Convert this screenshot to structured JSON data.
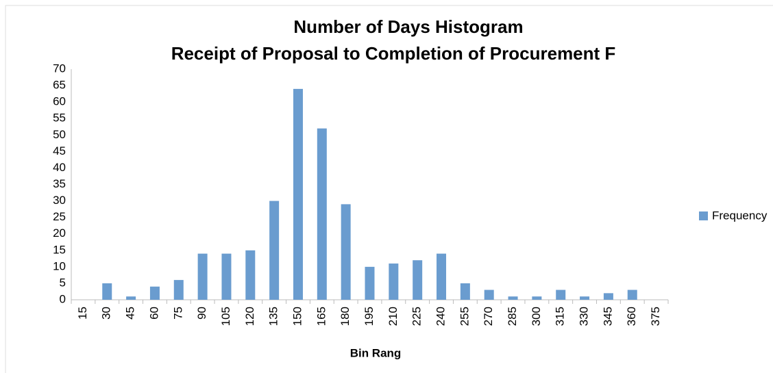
{
  "chart_data": {
    "type": "bar",
    "title": "Number of Days Histogram",
    "subtitle": "Receipt of Proposal to Completion of Procurement F",
    "x_label": "Bin Rang",
    "categories": [
      "15",
      "30",
      "45",
      "60",
      "75",
      "90",
      "105",
      "120",
      "135",
      "150",
      "165",
      "180",
      "195",
      "210",
      "225",
      "240",
      "255",
      "270",
      "285",
      "300",
      "315",
      "330",
      "345",
      "360",
      "375"
    ],
    "series": [
      {
        "name": "Frequency",
        "color": "#6a9ccf",
        "values": [
          0,
          5,
          1,
          4,
          6,
          14,
          14,
          15,
          30,
          64,
          52,
          29,
          10,
          11,
          12,
          14,
          5,
          3,
          1,
          1,
          3,
          1,
          2,
          3,
          0
        ]
      }
    ],
    "ylim": [
      0,
      70
    ],
    "yticks": [
      0,
      5,
      10,
      15,
      20,
      25,
      30,
      35,
      40,
      45,
      50,
      55,
      60,
      65,
      70
    ],
    "grid": false,
    "legend": "right"
  }
}
